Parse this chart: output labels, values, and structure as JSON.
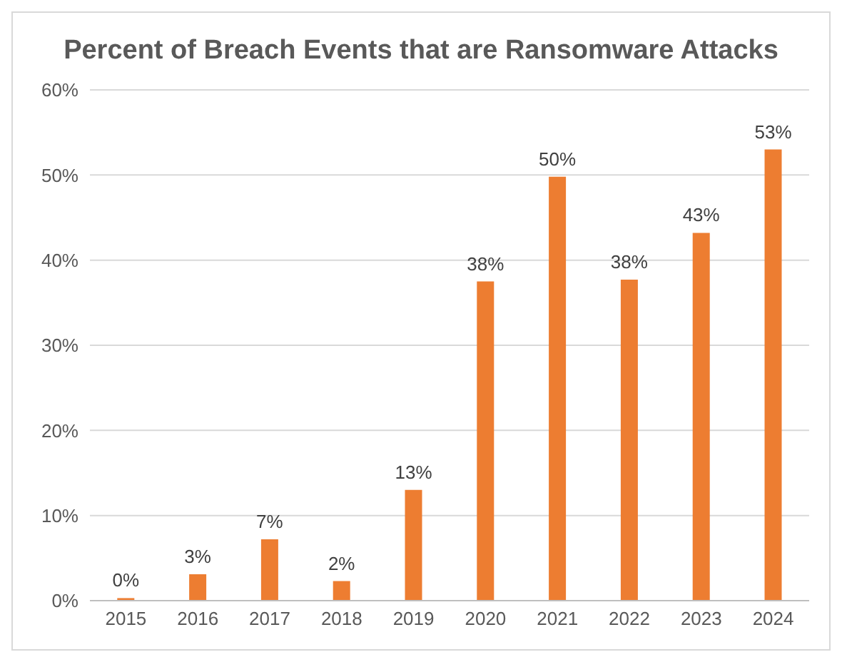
{
  "chart_data": {
    "type": "bar",
    "title": "Percent of Breach Events that are Ransomware Attacks",
    "categories": [
      "2015",
      "2016",
      "2017",
      "2018",
      "2019",
      "2020",
      "2021",
      "2022",
      "2023",
      "2024"
    ],
    "values": [
      0.3,
      3.1,
      7.2,
      2.3,
      13,
      37.5,
      49.8,
      37.7,
      43.2,
      53
    ],
    "value_labels": [
      "0%",
      "3%",
      "7%",
      "2%",
      "13%",
      "38%",
      "50%",
      "38%",
      "43%",
      "53%"
    ],
    "color": "#ed7d31",
    "ylim": [
      0,
      60
    ],
    "yticks": [
      {
        "value": 0,
        "label": "0%"
      },
      {
        "value": 10,
        "label": "10%"
      },
      {
        "value": 20,
        "label": "20%"
      },
      {
        "value": 30,
        "label": "30%"
      },
      {
        "value": 40,
        "label": "40%"
      },
      {
        "value": 50,
        "label": "50%"
      },
      {
        "value": 60,
        "label": "60%"
      }
    ],
    "grid": "y"
  }
}
